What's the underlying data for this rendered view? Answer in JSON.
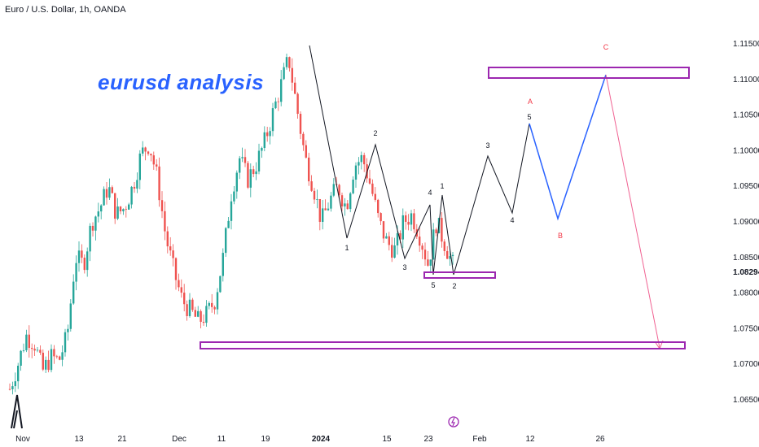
{
  "header": {
    "symbol_title": "Euro / U.S. Dollar, 1h, OANDA"
  },
  "annotation": {
    "text": "eurusd analysis",
    "color": "#2962ff"
  },
  "colors": {
    "up": "#26a69a",
    "down": "#ef5350",
    "wave": "#131722",
    "projection_blue": "#2962ff",
    "projection_pink": "#f06292",
    "zone": "#9c27b0",
    "corrective_label": "#f23645"
  },
  "chart_data": {
    "type": "candlestick",
    "ylim": [
      1.0635,
      1.1165
    ],
    "y_ticks": [
      "1.11500",
      "1.11000",
      "1.10500",
      "1.10000",
      "1.09500",
      "1.09000",
      "1.08500",
      "1.08294",
      "1.08000",
      "1.07500",
      "1.07000",
      "1.06500"
    ],
    "x_ticks": [
      "Nov",
      "13",
      "21",
      "Dec",
      "11",
      "19",
      "2024",
      "15",
      "23",
      "Feb",
      "12",
      "26"
    ],
    "price_path": [
      [
        0,
        1.0665
      ],
      [
        1,
        1.07
      ],
      [
        2,
        1.074
      ],
      [
        3,
        1.073
      ],
      [
        4,
        1.069
      ],
      [
        5,
        1.071
      ],
      [
        6,
        1.0705
      ],
      [
        7,
        1.074
      ],
      [
        8,
        1.085
      ],
      [
        9,
        1.084
      ],
      [
        10,
        1.09
      ],
      [
        11,
        1.092
      ],
      [
        12,
        1.095
      ],
      [
        13,
        1.091
      ],
      [
        14,
        1.092
      ],
      [
        15,
        1.095
      ],
      [
        16,
        1.0995
      ],
      [
        17,
        1.101
      ],
      [
        18,
        1.096
      ],
      [
        19,
        1.088
      ],
      [
        20,
        1.083
      ],
      [
        21,
        1.079
      ],
      [
        22,
        1.0775
      ],
      [
        23,
        1.076
      ],
      [
        24,
        1.077
      ],
      [
        25,
        1.079
      ],
      [
        26,
        1.085
      ],
      [
        27,
        1.094
      ],
      [
        28,
        1.099
      ],
      [
        29,
        1.096
      ],
      [
        30,
        1.098
      ],
      [
        31,
        1.101
      ],
      [
        32,
        1.105
      ],
      [
        33,
        1.109
      ],
      [
        34,
        1.113
      ],
      [
        35,
        1.106
      ],
      [
        36,
        1.099
      ],
      [
        37,
        1.095
      ],
      [
        38,
        1.09
      ],
      [
        39,
        1.093
      ],
      [
        40,
        1.095
      ],
      [
        41,
        1.092
      ],
      [
        42,
        1.098
      ],
      [
        43,
        1.099
      ],
      [
        44,
        1.095
      ],
      [
        45,
        1.09
      ],
      [
        46,
        1.087
      ],
      [
        47,
        1.086
      ],
      [
        48,
        1.09
      ],
      [
        49,
        1.091
      ],
      [
        50,
        1.088
      ],
      [
        51,
        1.084
      ],
      [
        52,
        1.09
      ],
      [
        53,
        1.087
      ],
      [
        54,
        1.084
      ]
    ],
    "wave_labels": [
      {
        "t": "1",
        "x": 426,
        "y": 308,
        "c": "wave"
      },
      {
        "t": "2",
        "x": 461,
        "y": 167,
        "c": "wave"
      },
      {
        "t": "3",
        "x": 497,
        "y": 332,
        "c": "wave"
      },
      {
        "t": "4",
        "x": 528,
        "y": 240,
        "c": "wave"
      },
      {
        "t": "5",
        "x": 532,
        "y": 354,
        "c": "wave"
      },
      {
        "t": "1",
        "x": 543,
        "y": 232,
        "c": "wave"
      },
      {
        "t": "2",
        "x": 558,
        "y": 355,
        "c": "wave"
      },
      {
        "t": "3",
        "x": 599,
        "y": 182,
        "c": "wave"
      },
      {
        "t": "4",
        "x": 629,
        "y": 274,
        "c": "wave"
      },
      {
        "t": "5",
        "x": 650,
        "y": 147,
        "c": "wave"
      },
      {
        "t": "A",
        "x": 651,
        "y": 128,
        "c": "corrective"
      },
      {
        "t": "B",
        "x": 688,
        "y": 293,
        "c": "corrective"
      },
      {
        "t": "C",
        "x": 744,
        "y": 61,
        "c": "corrective"
      }
    ]
  }
}
